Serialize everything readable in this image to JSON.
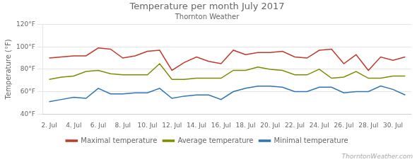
{
  "chart_data": {
    "type": "line",
    "title": "Temperature per month July 2017",
    "subtitle": "Thornton Weather",
    "y_label": "Temperature (°F)",
    "annotations": [
      "ThorntonWeather.com"
    ],
    "x": [
      2,
      3,
      4,
      5,
      6,
      7,
      8,
      9,
      10,
      11,
      12,
      13,
      14,
      15,
      16,
      17,
      18,
      19,
      20,
      21,
      22,
      23,
      24,
      25,
      26,
      27,
      28,
      29,
      30,
      31
    ],
    "series": [
      {
        "name": "Maximal temperature",
        "color": "#c0392b",
        "values": [
          90,
          91,
          92,
          92,
          99,
          98,
          90,
          92,
          96,
          97,
          79,
          86,
          91,
          87,
          85,
          97,
          93,
          95,
          95,
          96,
          91,
          90,
          97,
          98,
          85,
          93,
          79,
          91,
          88,
          91
        ]
      },
      {
        "name": "Average temperature",
        "color": "#7f8c00",
        "values": [
          71,
          73,
          74,
          78,
          79,
          76,
          75,
          75,
          75,
          85,
          71,
          71,
          72,
          72,
          72,
          79,
          79,
          82,
          80,
          79,
          75,
          75,
          80,
          72,
          73,
          78,
          72,
          72,
          74,
          74
        ]
      },
      {
        "name": "Minimal temperature",
        "color": "#2e75b6",
        "values": [
          51,
          53,
          55,
          54,
          63,
          58,
          58,
          59,
          59,
          63,
          54,
          56,
          57,
          57,
          53,
          60,
          63,
          65,
          65,
          64,
          60,
          60,
          64,
          64,
          59,
          60,
          60,
          65,
          62,
          57
        ]
      }
    ],
    "xlim": [
      1.5,
      31.5
    ],
    "xticks": [
      {
        "value": 2,
        "label": "2. Jul"
      },
      {
        "value": 4,
        "label": "4. Jul"
      },
      {
        "value": 6,
        "label": "6. Jul"
      },
      {
        "value": 8,
        "label": "8. Jul"
      },
      {
        "value": 10,
        "label": "10. Jul"
      },
      {
        "value": 12,
        "label": "12. Jul"
      },
      {
        "value": 14,
        "label": "14. Jul"
      },
      {
        "value": 16,
        "label": "16. Jul"
      },
      {
        "value": 18,
        "label": "18. Jul"
      },
      {
        "value": 20,
        "label": "20. Jul"
      },
      {
        "value": 22,
        "label": "22. Jul"
      },
      {
        "value": 24,
        "label": "24. Jul"
      },
      {
        "value": 26,
        "label": "26. Jul"
      },
      {
        "value": 28,
        "label": "28. Jul"
      },
      {
        "value": 30,
        "label": "30. Jul"
      }
    ],
    "ylim": [
      40,
      120
    ],
    "yticks": [
      {
        "value": 40,
        "label": "40°F"
      },
      {
        "value": 60,
        "label": "60°F"
      },
      {
        "value": 80,
        "label": "80°F"
      },
      {
        "value": 100,
        "label": "100°F"
      },
      {
        "value": 120,
        "label": "120°F"
      }
    ],
    "grid": "y",
    "legend": "bottom"
  }
}
